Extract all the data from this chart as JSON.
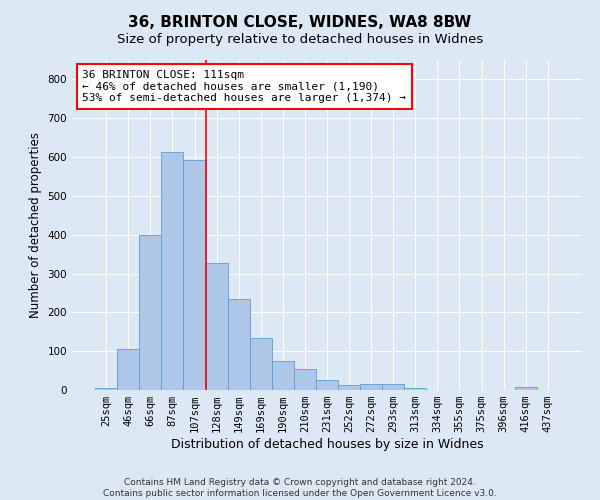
{
  "title1": "36, BRINTON CLOSE, WIDNES, WA8 8BW",
  "title2": "Size of property relative to detached houses in Widnes",
  "xlabel": "Distribution of detached houses by size in Widnes",
  "ylabel": "Number of detached properties",
  "categories": [
    "25sqm",
    "46sqm",
    "66sqm",
    "87sqm",
    "107sqm",
    "128sqm",
    "149sqm",
    "169sqm",
    "190sqm",
    "210sqm",
    "231sqm",
    "252sqm",
    "272sqm",
    "293sqm",
    "313sqm",
    "334sqm",
    "355sqm",
    "375sqm",
    "396sqm",
    "416sqm",
    "437sqm"
  ],
  "values": [
    6,
    105,
    400,
    613,
    593,
    327,
    235,
    135,
    75,
    53,
    25,
    12,
    15,
    16,
    5,
    0,
    0,
    0,
    0,
    7,
    0
  ],
  "bar_color": "#aec6e8",
  "bar_edge_color": "#5a9fd4",
  "vline_index": 4,
  "vline_color": "red",
  "annotation_text": "36 BRINTON CLOSE: 111sqm\n← 46% of detached houses are smaller (1,190)\n53% of semi-detached houses are larger (1,374) →",
  "annotation_box_color": "white",
  "annotation_box_edge": "red",
  "ylim": [
    0,
    850
  ],
  "yticks": [
    0,
    100,
    200,
    300,
    400,
    500,
    600,
    700,
    800
  ],
  "background_color": "#dce9f5",
  "footnote": "Contains HM Land Registry data © Crown copyright and database right 2024.\nContains public sector information licensed under the Open Government Licence v3.0.",
  "title1_fontsize": 11,
  "title2_fontsize": 9.5,
  "xlabel_fontsize": 9,
  "ylabel_fontsize": 8.5,
  "annotation_fontsize": 8,
  "footnote_fontsize": 6.5,
  "tick_fontsize": 7.5
}
